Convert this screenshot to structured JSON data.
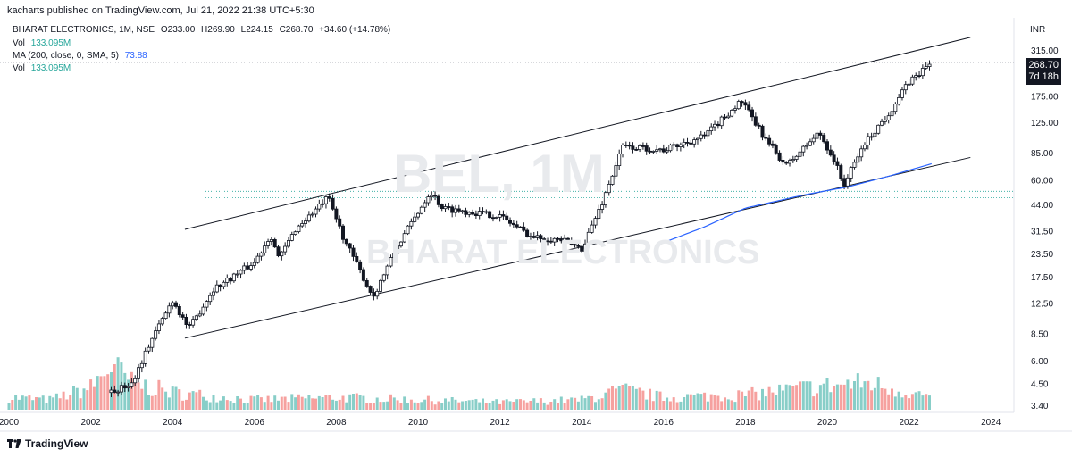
{
  "publisher_line": "kacharts published on TradingView.com, Jul 21, 2022 21:38 UTC+5:30",
  "symbol_line": {
    "name": "BHARAT ELECTRONICS, 1M, NSE",
    "open": "O233.00",
    "high": "H269.90",
    "low": "L224.15",
    "close": "C268.70",
    "change": "+34.60 (+14.78%)"
  },
  "vol_label": "Vol",
  "vol_value": "133.095M",
  "ma_label": "MA (200, close, 0, SMA, 5)",
  "ma_value": "73.88",
  "vol2_label": "Vol",
  "vol2_value": "133.095M",
  "currency": "INR",
  "price_tag": {
    "price": "268.70",
    "countdown": "7d 18h"
  },
  "watermark_ticker": "BEL, 1M",
  "watermark_name": "BHARAT ELECTRONICS",
  "branding": "TradingView",
  "chart_data": {
    "type": "candlestick",
    "title": "",
    "y_scale": "log",
    "y_ticks": [
      "315.00",
      "268.70",
      "175.00",
      "125.00",
      "85.00",
      "60.00",
      "44.00",
      "31.50",
      "23.50",
      "17.50",
      "12.50",
      "8.50",
      "6.00",
      "4.50",
      "3.40"
    ],
    "x_ticks": [
      "2000",
      "2002",
      "2004",
      "2006",
      "2008",
      "2010",
      "2012",
      "2014",
      "2016",
      "2018",
      "2020",
      "2022",
      "2024"
    ],
    "price_anchors": [
      {
        "date": 2002.5,
        "price": 4.0
      },
      {
        "date": 2003.0,
        "price": 4.5
      },
      {
        "date": 2003.5,
        "price": 8.0
      },
      {
        "date": 2004.0,
        "price": 13.0
      },
      {
        "date": 2004.4,
        "price": 9.0
      },
      {
        "date": 2005.0,
        "price": 15.0
      },
      {
        "date": 2006.0,
        "price": 21.0
      },
      {
        "date": 2006.4,
        "price": 30.0
      },
      {
        "date": 2006.6,
        "price": 22.0
      },
      {
        "date": 2007.0,
        "price": 32.0
      },
      {
        "date": 2007.8,
        "price": 48.0
      },
      {
        "date": 2008.2,
        "price": 28.0
      },
      {
        "date": 2008.9,
        "price": 13.5
      },
      {
        "date": 2009.5,
        "price": 26.0
      },
      {
        "date": 2010.0,
        "price": 40.0
      },
      {
        "date": 2010.3,
        "price": 52.0
      },
      {
        "date": 2010.6,
        "price": 42.0
      },
      {
        "date": 2012.0,
        "price": 38.0
      },
      {
        "date": 2012.8,
        "price": 29.0
      },
      {
        "date": 2013.5,
        "price": 28.0
      },
      {
        "date": 2014.0,
        "price": 25.0
      },
      {
        "date": 2014.5,
        "price": 45.0
      },
      {
        "date": 2015.0,
        "price": 92.0
      },
      {
        "date": 2016.0,
        "price": 88.0
      },
      {
        "date": 2017.0,
        "price": 105.0
      },
      {
        "date": 2017.9,
        "price": 165.0
      },
      {
        "date": 2018.5,
        "price": 100.0
      },
      {
        "date": 2019.0,
        "price": 72.0
      },
      {
        "date": 2019.8,
        "price": 110.0
      },
      {
        "date": 2020.2,
        "price": 75.0
      },
      {
        "date": 2020.4,
        "price": 56.0
      },
      {
        "date": 2020.9,
        "price": 95.0
      },
      {
        "date": 2021.5,
        "price": 140.0
      },
      {
        "date": 2022.0,
        "price": 210.0
      },
      {
        "date": 2022.55,
        "price": 268.7
      }
    ],
    "ma_anchors": [
      {
        "date": 2015.8,
        "price": 26.0
      },
      {
        "date": 2017.0,
        "price": 33.0
      },
      {
        "date": 2018.0,
        "price": 42.0
      },
      {
        "date": 2019.5,
        "price": 50.0
      },
      {
        "date": 2020.5,
        "price": 55.0
      },
      {
        "date": 2021.5,
        "price": 63.0
      },
      {
        "date": 2022.55,
        "price": 73.88
      }
    ],
    "volume_profile": [
      {
        "date": 2000.0,
        "v": 0.25
      },
      {
        "date": 2001.0,
        "v": 0.2
      },
      {
        "date": 2002.0,
        "v": 0.45
      },
      {
        "date": 2002.5,
        "v": 0.9
      },
      {
        "date": 2003.0,
        "v": 0.55
      },
      {
        "date": 2004.0,
        "v": 0.35
      },
      {
        "date": 2006.0,
        "v": 0.2
      },
      {
        "date": 2008.0,
        "v": 0.25
      },
      {
        "date": 2010.0,
        "v": 0.2
      },
      {
        "date": 2012.0,
        "v": 0.15
      },
      {
        "date": 2014.0,
        "v": 0.2
      },
      {
        "date": 2015.0,
        "v": 0.4
      },
      {
        "date": 2016.0,
        "v": 0.25
      },
      {
        "date": 2018.0,
        "v": 0.3
      },
      {
        "date": 2019.5,
        "v": 0.45
      },
      {
        "date": 2021.0,
        "v": 0.55
      },
      {
        "date": 2022.55,
        "v": 0.25
      }
    ],
    "channel_upper": [
      {
        "date": 2004.3,
        "price": 32.0
      },
      {
        "date": 2023.5,
        "price": 370.0
      }
    ],
    "channel_lower": [
      {
        "date": 2004.3,
        "price": 8.0
      },
      {
        "date": 2023.5,
        "price": 80.0
      }
    ],
    "horizontal_resistance": {
      "from": 2018.5,
      "to": 2022.3,
      "price": 115.0
    },
    "dotted_levels": [
      52.0,
      48.0
    ],
    "last_price": 268.7
  }
}
